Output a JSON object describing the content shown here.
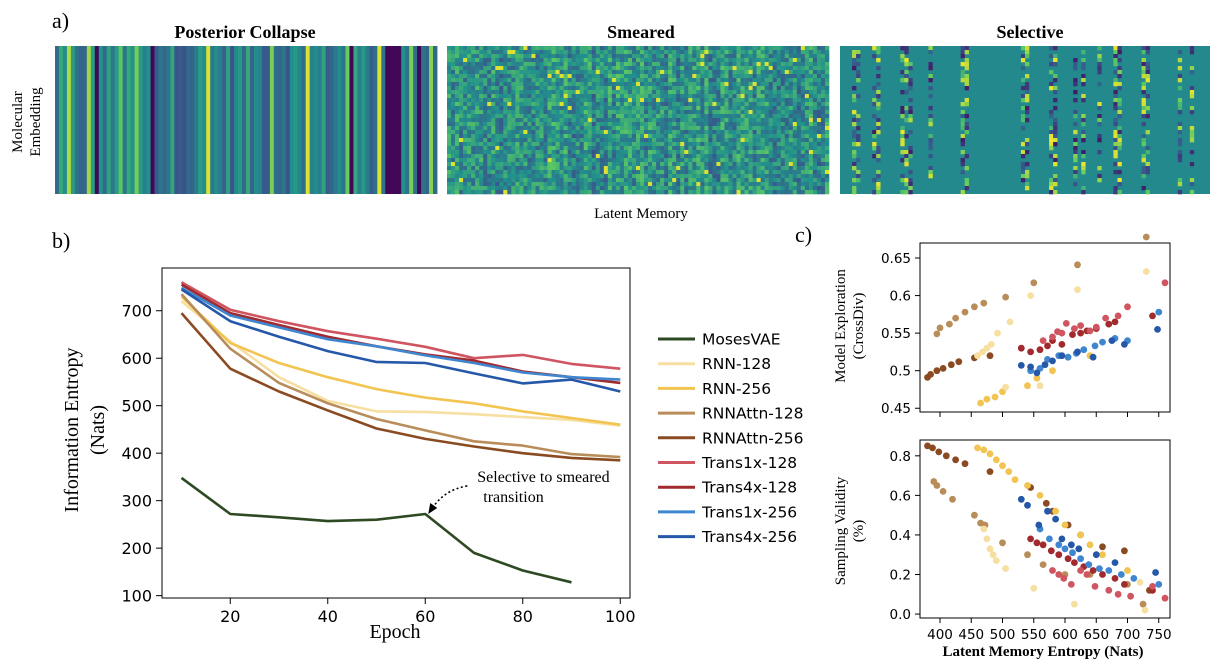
{
  "panel_labels": {
    "a": "a)",
    "b": "b)",
    "c": "c)"
  },
  "colors": {
    "MosesVAE": "#2d4a23",
    "RNN-128": "#f6dfa0",
    "RNN-256": "#f2c451",
    "RNNAttn-128": "#b98d5a",
    "RNNAttn-256": "#8a4b22",
    "Trans1x-128": "#cf5560",
    "Trans4x-128": "#a02a2e",
    "Trans1x-256": "#3f86d0",
    "Trans4x-256": "#2558a9",
    "viridis": [
      "#440154",
      "#3b528b",
      "#21918c",
      "#5ec962",
      "#fde725"
    ]
  },
  "chart_data": [
    {
      "type": "heatmap",
      "panel": "a",
      "titles": [
        "Posterior Collapse",
        "Smeared",
        "Selective"
      ],
      "ylabel_lines": [
        "Molecular",
        "Embedding"
      ],
      "xlabel": "Latent Memory",
      "colormap": "viridis"
    },
    {
      "type": "line",
      "panel": "b",
      "xlabel": "Epoch",
      "ylabel_lines": [
        "Information Entropy",
        "(Nats)"
      ],
      "xlim": [
        6,
        102
      ],
      "ylim": [
        95,
        790
      ],
      "xticks": [
        20,
        40,
        60,
        80,
        100
      ],
      "yticks": [
        100,
        200,
        300,
        400,
        500,
        600,
        700
      ],
      "annotation": {
        "lines": [
          "Selective to smeared",
          "transition"
        ],
        "x": 60,
        "y": 272
      },
      "series": [
        {
          "name": "MosesVAE",
          "x": [
            10,
            20,
            30,
            40,
            50,
            60,
            70,
            80,
            90
          ],
          "y": [
            348,
            272,
            265,
            257,
            260,
            272,
            190,
            153,
            128
          ]
        },
        {
          "name": "RNN-128",
          "x": [
            10,
            20,
            30,
            40,
            50,
            60,
            70,
            80,
            90,
            100
          ],
          "y": [
            720,
            635,
            560,
            510,
            488,
            487,
            482,
            476,
            470,
            458
          ]
        },
        {
          "name": "RNN-256",
          "x": [
            10,
            20,
            30,
            40,
            50,
            60,
            70,
            80,
            90,
            100
          ],
          "y": [
            730,
            632,
            590,
            560,
            535,
            517,
            505,
            488,
            474,
            460
          ]
        },
        {
          "name": "RNNAttn-128",
          "x": [
            10,
            20,
            30,
            40,
            50,
            60,
            70,
            80,
            90,
            100
          ],
          "y": [
            735,
            620,
            548,
            505,
            472,
            448,
            425,
            416,
            398,
            392
          ]
        },
        {
          "name": "RNNAttn-256",
          "x": [
            10,
            20,
            30,
            40,
            50,
            60,
            70,
            80,
            90,
            100
          ],
          "y": [
            695,
            578,
            530,
            490,
            452,
            430,
            414,
            400,
            390,
            385
          ]
        },
        {
          "name": "Trans1x-128",
          "x": [
            10,
            20,
            30,
            40,
            50,
            60,
            70,
            80,
            90,
            100
          ],
          "y": [
            760,
            702,
            678,
            657,
            641,
            624,
            600,
            607,
            588,
            578
          ]
        },
        {
          "name": "Trans4x-128",
          "x": [
            10,
            20,
            30,
            40,
            50,
            60,
            70,
            80,
            90,
            100
          ],
          "y": [
            755,
            695,
            670,
            645,
            625,
            608,
            595,
            572,
            560,
            548
          ]
        },
        {
          "name": "Trans1x-256",
          "x": [
            10,
            20,
            30,
            40,
            50,
            60,
            70,
            80,
            90,
            100
          ],
          "y": [
            748,
            690,
            665,
            640,
            625,
            606,
            590,
            570,
            560,
            555
          ]
        },
        {
          "name": "Trans4x-256",
          "x": [
            10,
            20,
            30,
            40,
            50,
            60,
            70,
            80,
            90,
            100
          ],
          "y": [
            745,
            678,
            645,
            615,
            592,
            590,
            568,
            547,
            555,
            530
          ]
        }
      ]
    },
    {
      "type": "scatter",
      "panel": "c-top",
      "ylabel_lines": [
        "Model Exploration",
        "(CrossDiv)"
      ],
      "xlim": [
        368,
        768
      ],
      "ylim": [
        0.445,
        0.67
      ],
      "yticks": [
        0.45,
        0.5,
        0.55,
        0.6,
        0.65
      ],
      "series": [
        {
          "name": "RNNAttn-128",
          "x": [
            395,
            400,
            415,
            425,
            440,
            455,
            470,
            505,
            550,
            620,
            730
          ],
          "y": [
            0.549,
            0.557,
            0.562,
            0.57,
            0.578,
            0.585,
            0.59,
            0.598,
            0.617,
            0.641,
            0.678
          ]
        },
        {
          "name": "RNNAttn-256",
          "x": [
            380,
            385,
            395,
            405,
            418,
            430,
            455,
            480
          ],
          "y": [
            0.491,
            0.495,
            0.5,
            0.503,
            0.508,
            0.512,
            0.517,
            0.52
          ]
        },
        {
          "name": "RNN-256",
          "x": [
            465,
            475,
            488,
            500,
            540,
            555,
            580,
            640
          ],
          "y": [
            0.457,
            0.462,
            0.465,
            0.472,
            0.48,
            0.49,
            0.5,
            0.52
          ]
        },
        {
          "name": "RNN-128",
          "x": [
            460,
            468,
            475,
            482,
            492,
            505,
            512,
            545,
            560,
            620,
            730
          ],
          "y": [
            0.52,
            0.525,
            0.53,
            0.535,
            0.55,
            0.478,
            0.565,
            0.6,
            0.48,
            0.608,
            0.632
          ]
        },
        {
          "name": "Trans4x-128",
          "x": [
            530,
            545,
            560,
            572,
            580,
            595,
            612,
            625,
            635,
            650,
            670,
            680,
            740
          ],
          "y": [
            0.53,
            0.525,
            0.528,
            0.533,
            0.54,
            0.535,
            0.548,
            0.55,
            0.553,
            0.556,
            0.562,
            0.565,
            0.573
          ]
        },
        {
          "name": "Trans1x-128",
          "x": [
            565,
            580,
            588,
            595,
            602,
            615,
            625,
            640,
            650,
            665,
            685,
            700,
            760
          ],
          "y": [
            0.54,
            0.545,
            0.552,
            0.55,
            0.563,
            0.556,
            0.56,
            0.553,
            0.558,
            0.57,
            0.573,
            0.585,
            0.617
          ]
        },
        {
          "name": "Trans1x-256",
          "x": [
            545,
            560,
            572,
            590,
            605,
            618,
            630,
            648,
            660,
            680,
            700,
            750
          ],
          "y": [
            0.5,
            0.503,
            0.515,
            0.52,
            0.518,
            0.523,
            0.528,
            0.533,
            0.538,
            0.543,
            0.54,
            0.578
          ]
        },
        {
          "name": "Trans4x-256",
          "x": [
            530,
            545,
            555,
            568,
            580,
            595,
            620,
            645,
            675,
            695,
            748
          ],
          "y": [
            0.507,
            0.505,
            0.497,
            0.508,
            0.513,
            0.52,
            0.525,
            0.518,
            0.54,
            0.535,
            0.555
          ]
        }
      ]
    },
    {
      "type": "scatter",
      "panel": "c-bottom",
      "xlabel": "Latent Memory Entropy (Nats)",
      "ylabel_lines": [
        "Sampling Validity",
        "(%)"
      ],
      "xlim": [
        368,
        768
      ],
      "ylim": [
        -0.02,
        0.88
      ],
      "xticks": [
        400,
        450,
        500,
        550,
        600,
        650,
        700,
        750
      ],
      "yticks": [
        0.0,
        0.2,
        0.4,
        0.6,
        0.8
      ],
      "series": [
        {
          "name": "RNNAttn-256",
          "x": [
            380,
            388,
            398,
            410,
            425,
            440,
            480,
            545,
            570,
            580,
            605,
            625,
            660,
            695,
            735
          ],
          "y": [
            0.85,
            0.84,
            0.82,
            0.8,
            0.78,
            0.76,
            0.72,
            0.64,
            0.56,
            0.52,
            0.45,
            0.4,
            0.34,
            0.32,
            0.12
          ]
        },
        {
          "name": "RNNAttn-128",
          "x": [
            390,
            395,
            405,
            420,
            455,
            465,
            472,
            500,
            540,
            565,
            600,
            640,
            700,
            725
          ],
          "y": [
            0.67,
            0.65,
            0.62,
            0.58,
            0.5,
            0.46,
            0.45,
            0.36,
            0.3,
            0.25,
            0.2,
            0.2,
            0.15,
            0.05
          ]
        },
        {
          "name": "RNN-256",
          "x": [
            460,
            470,
            480,
            490,
            500,
            510,
            520,
            540,
            560,
            585,
            600,
            625,
            640,
            660,
            700
          ],
          "y": [
            0.84,
            0.83,
            0.81,
            0.78,
            0.75,
            0.72,
            0.68,
            0.65,
            0.6,
            0.52,
            0.45,
            0.4,
            0.35,
            0.3,
            0.22
          ]
        },
        {
          "name": "RNN-128",
          "x": [
            470,
            475,
            480,
            485,
            490,
            505,
            550,
            615,
            720,
            728
          ],
          "y": [
            0.43,
            0.38,
            0.33,
            0.3,
            0.27,
            0.23,
            0.13,
            0.05,
            0.16,
            0.02
          ]
        },
        {
          "name": "Trans4x-128",
          "x": [
            545,
            555,
            565,
            578,
            590,
            605,
            615,
            630,
            645,
            660,
            680,
            695,
            740
          ],
          "y": [
            0.38,
            0.36,
            0.35,
            0.32,
            0.3,
            0.28,
            0.26,
            0.24,
            0.22,
            0.2,
            0.18,
            0.15,
            0.12
          ]
        },
        {
          "name": "Trans1x-128",
          "x": [
            580,
            590,
            598,
            610,
            625,
            635,
            648,
            670,
            685,
            705,
            740,
            760
          ],
          "y": [
            0.22,
            0.2,
            0.18,
            0.15,
            0.22,
            0.2,
            0.14,
            0.12,
            0.1,
            0.09,
            0.14,
            0.08
          ]
        },
        {
          "name": "Trans1x-256",
          "x": [
            560,
            575,
            590,
            600,
            612,
            625,
            638,
            655,
            670,
            690,
            710,
            750
          ],
          "y": [
            0.43,
            0.38,
            0.35,
            0.33,
            0.31,
            0.28,
            0.25,
            0.23,
            0.22,
            0.2,
            0.18,
            0.15
          ]
        },
        {
          "name": "Trans4x-256",
          "x": [
            530,
            540,
            558,
            572,
            585,
            595,
            610,
            622,
            650,
            680,
            745
          ],
          "y": [
            0.58,
            0.55,
            0.45,
            0.52,
            0.48,
            0.38,
            0.35,
            0.33,
            0.3,
            0.26,
            0.21
          ]
        }
      ]
    }
  ]
}
